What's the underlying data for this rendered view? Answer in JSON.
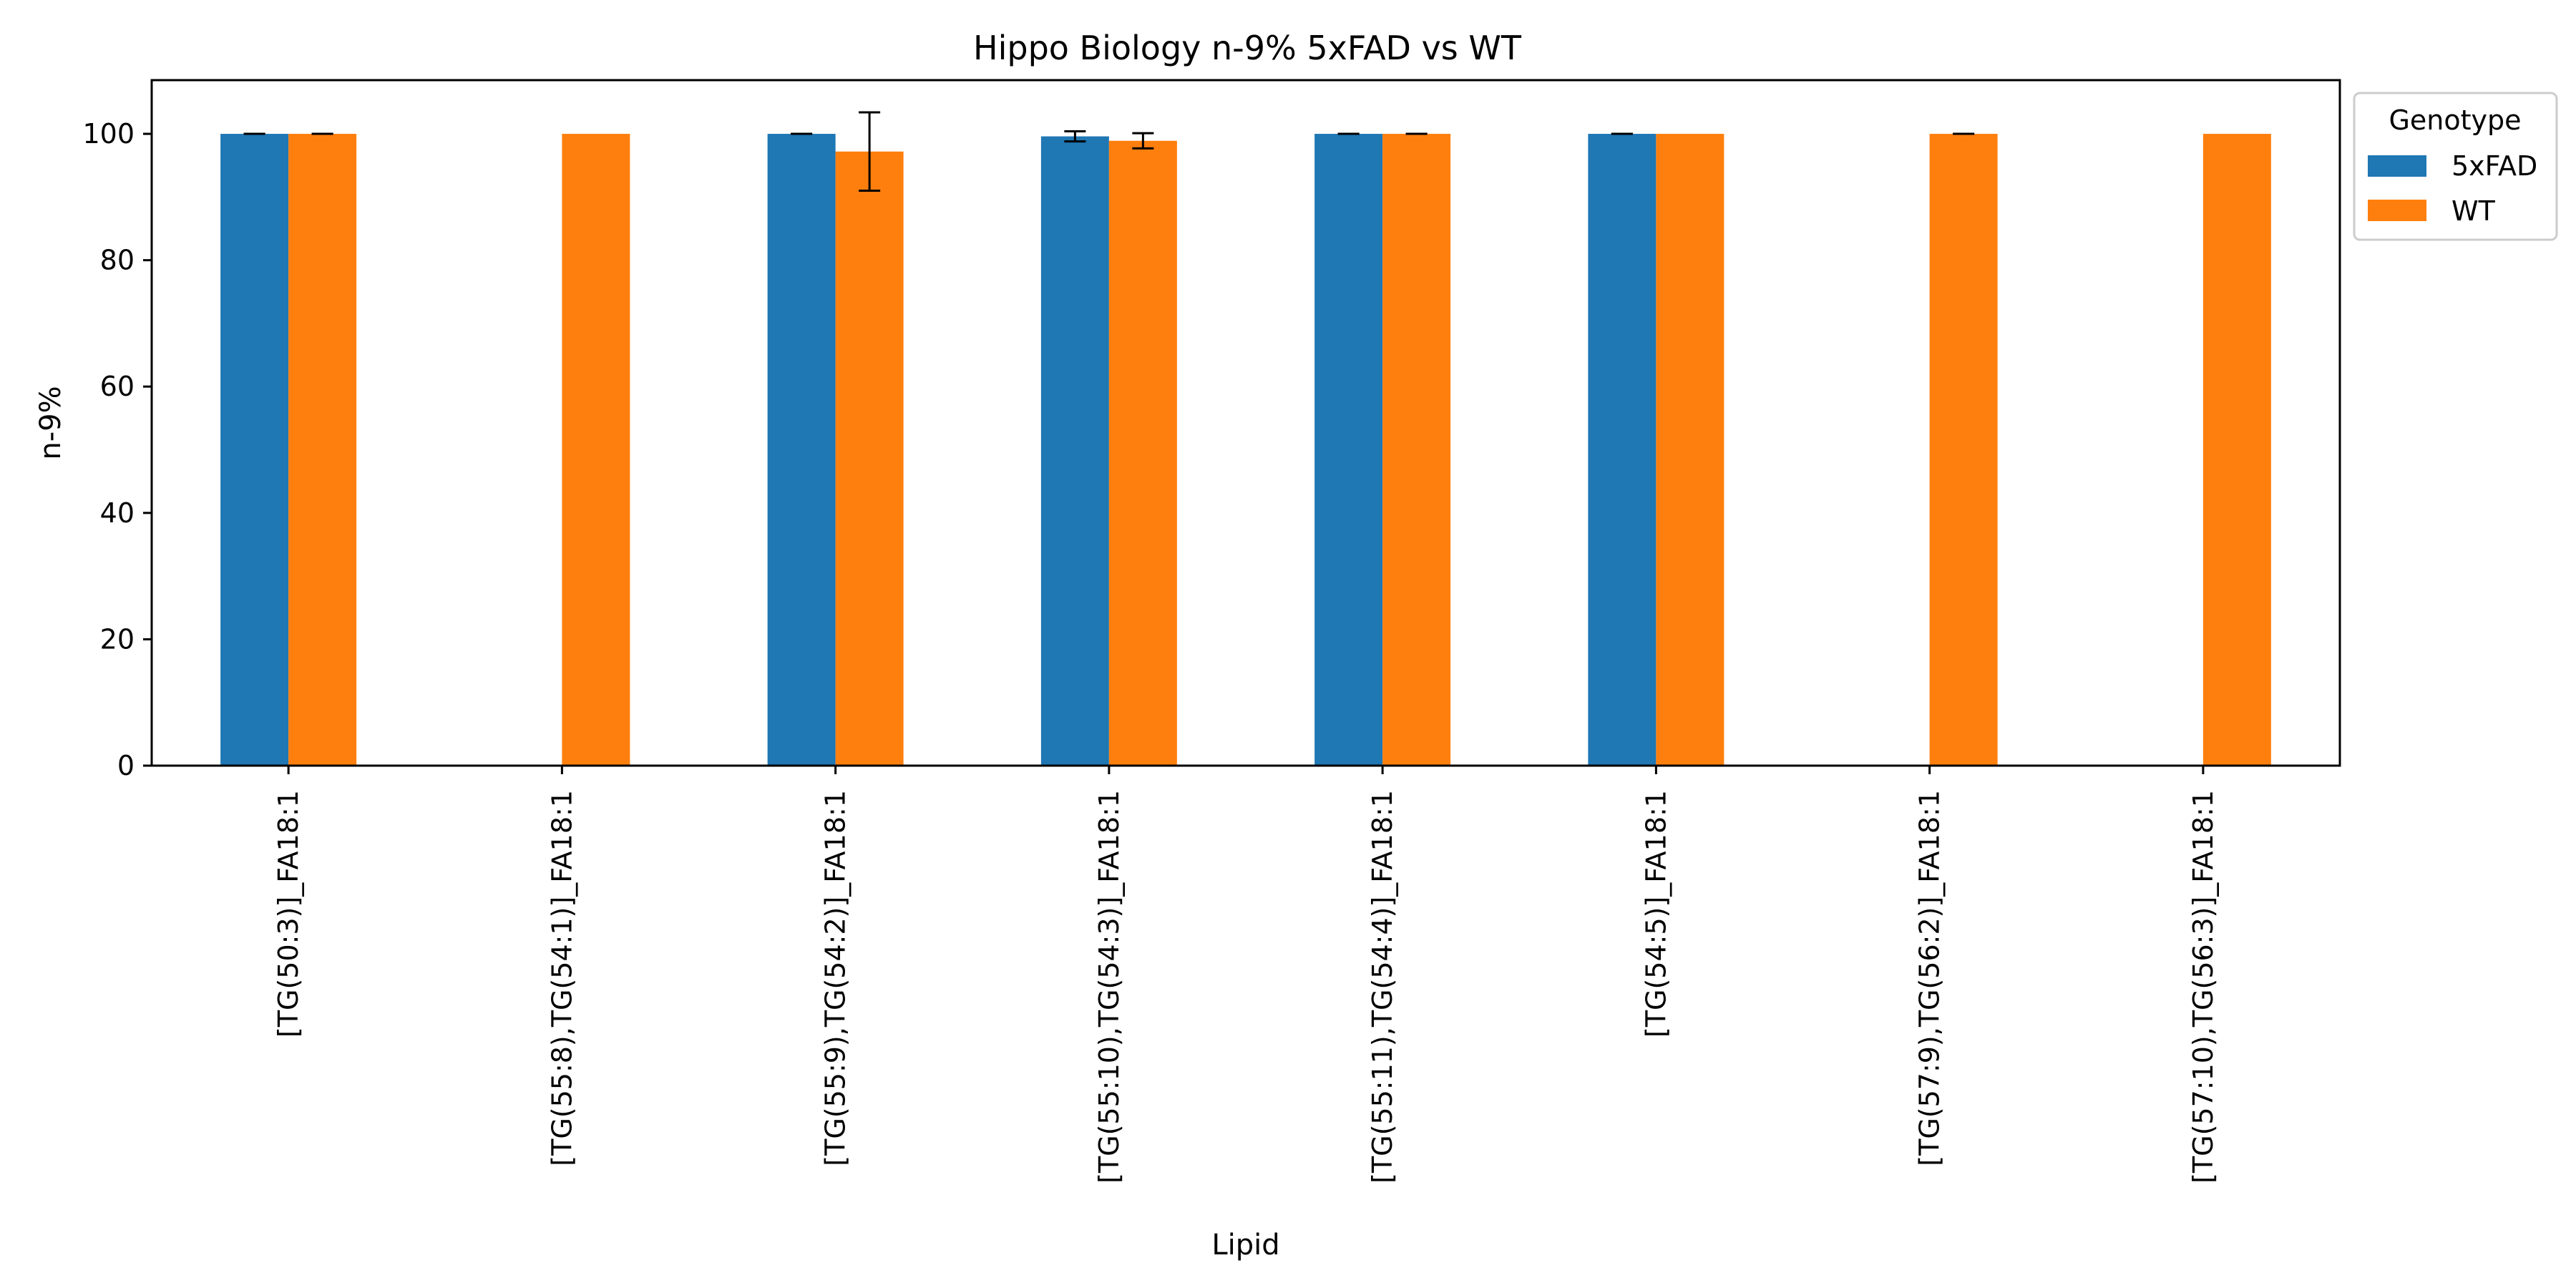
{
  "chart_data": {
    "type": "bar",
    "title": "Hippo Biology n-9% 5xFAD vs WT",
    "xlabel": "Lipid",
    "ylabel": "n-9%",
    "ylim": [
      0,
      108.5
    ],
    "yticks": [
      0,
      20,
      40,
      60,
      80,
      100
    ],
    "grid": false,
    "legend_placement": "outside-upper-right",
    "categories": [
      "[TG(50:3)]_FA18:1",
      "[TG(55:8),TG(54:1)]_FA18:1",
      "[TG(55:9),TG(54:2)]_FA18:1",
      "[TG(55:10),TG(54:3)]_FA18:1",
      "[TG(55:11),TG(54:4)]_FA18:1",
      "[TG(54:5)]_FA18:1",
      "[TG(57:9),TG(56:2)]_FA18:1",
      "[TG(57:10),TG(56:3)]_FA18:1"
    ],
    "legend": {
      "title": "Genotype"
    },
    "series": [
      {
        "name": "5xFAD",
        "color": "#1f77b4",
        "values": [
          100,
          null,
          100,
          99.6,
          100,
          100,
          null,
          null
        ],
        "errors": [
          0,
          null,
          0,
          0.8,
          0,
          0,
          null,
          null
        ]
      },
      {
        "name": "WT",
        "color": "#ff7f0e",
        "values": [
          100,
          100,
          97.2,
          98.9,
          100,
          100,
          100,
          100
        ],
        "errors": [
          0,
          null,
          6.2,
          1.2,
          0,
          null,
          0,
          null
        ]
      }
    ]
  }
}
